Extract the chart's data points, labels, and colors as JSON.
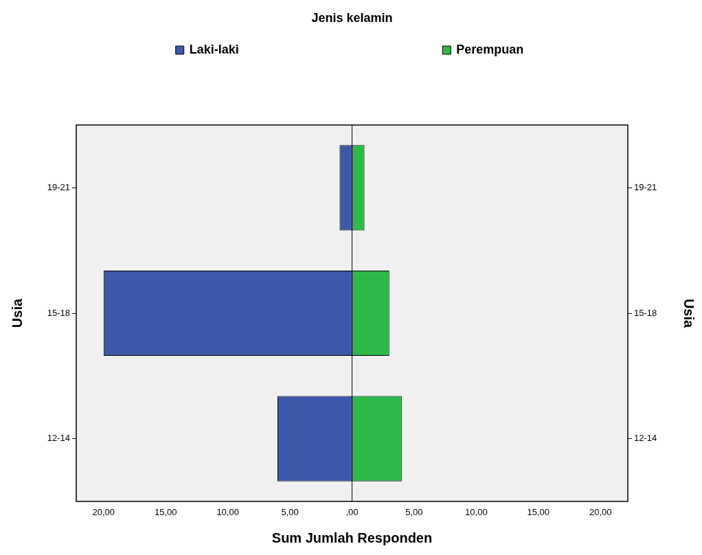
{
  "chart_data": {
    "type": "bar",
    "orientation": "horizontal",
    "legend_title": "Jenis kelamin",
    "xlabel": "Sum Jumlah Responden",
    "ylabel": "Usia",
    "y2label": "Usia",
    "categories": [
      "19-21",
      "15-18",
      "12-14"
    ],
    "series": [
      {
        "name": "Laki-laki",
        "color": "#3d58a8",
        "values": [
          -1,
          -20,
          -6
        ]
      },
      {
        "name": "Perempuan",
        "color": "#2eb84a",
        "values": [
          1,
          3,
          4
        ]
      }
    ],
    "xlim": [
      -22.2,
      22.2
    ],
    "xticks": [
      {
        "value": -20,
        "label": "20,00"
      },
      {
        "value": -15,
        "label": "15,00"
      },
      {
        "value": -10,
        "label": "10,00"
      },
      {
        "value": -5,
        "label": "5,00"
      },
      {
        "value": 0,
        "label": ",00"
      },
      {
        "value": 5,
        "label": "5,00"
      },
      {
        "value": 10,
        "label": "10,00"
      },
      {
        "value": 15,
        "label": "15,00"
      },
      {
        "value": 20,
        "label": "20,00"
      }
    ],
    "ref_lines": [
      {
        "axis": "x",
        "value": 0,
        "color": "#000000"
      }
    ],
    "stacked": true,
    "grid": false,
    "legend": "top"
  }
}
